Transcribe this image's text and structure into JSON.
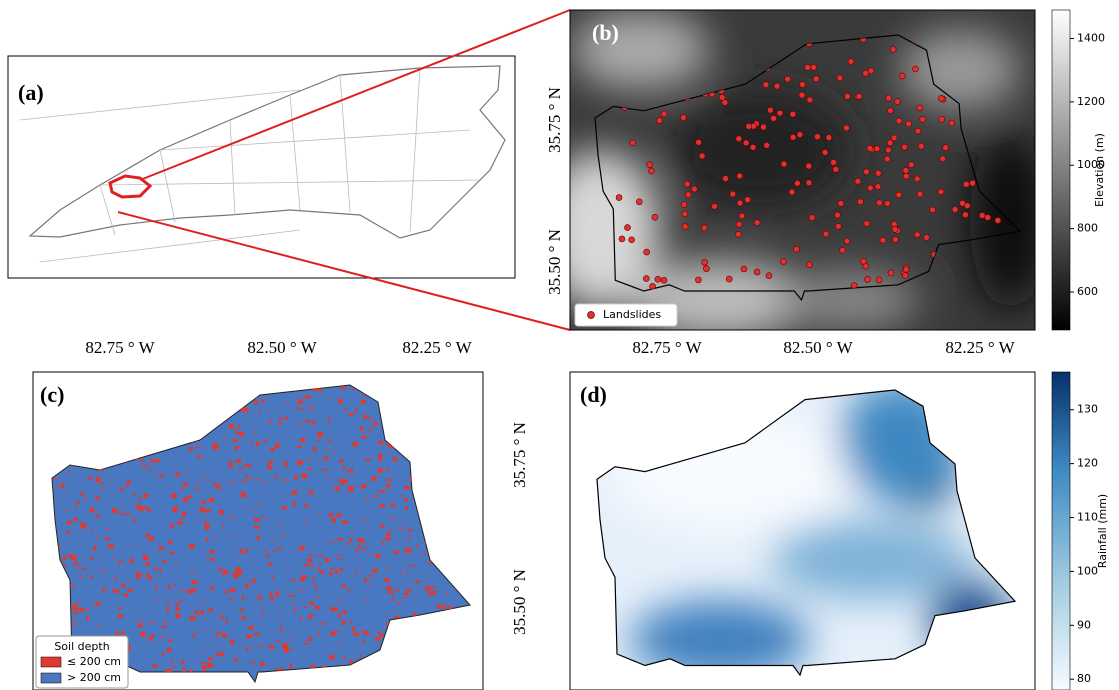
{
  "panels": {
    "a": {
      "label": "(a)"
    },
    "b": {
      "label": "(b)",
      "legend": "Landslides",
      "x_tick_labels": [
        "82.75 ° W",
        "82.50 ° W",
        "82.25 ° W"
      ],
      "y_tick_labels": [
        "35.75 ° N",
        "35.50 ° N"
      ],
      "colorbar": {
        "label": "Elevation (m)",
        "lim": [
          480,
          1490
        ],
        "ticks": [
          600,
          800,
          1000,
          1200,
          1400
        ]
      }
    },
    "c": {
      "label": "(c)",
      "x_tick_labels": [
        "82.75 ° W",
        "82.50 ° W",
        "82.25 ° W"
      ],
      "legend": {
        "title": "Soil depth",
        "items": [
          "≤ 200 cm",
          "> 200 cm"
        ]
      }
    },
    "d": {
      "label": "(d)",
      "y_tick_labels": [
        "35.75 ° N",
        "35.50 ° N"
      ],
      "colorbar": {
        "label": "Rainfall (mm)",
        "lim": [
          78,
          137
        ],
        "ticks": [
          80,
          90,
          100,
          110,
          120,
          130
        ]
      }
    }
  }
}
